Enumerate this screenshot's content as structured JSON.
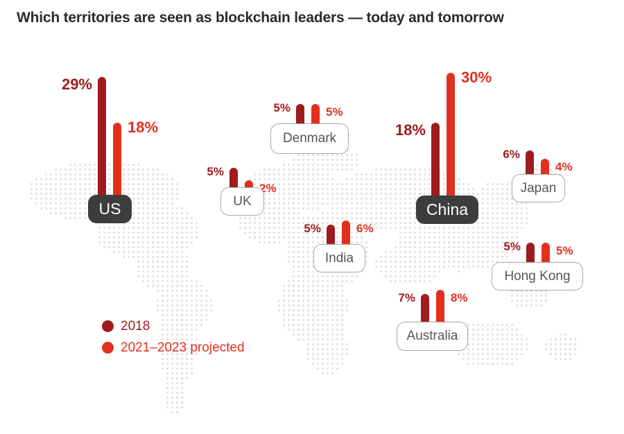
{
  "title": "Which territories are seen as blockchain leaders — today and tomorrow",
  "colors": {
    "y2018": "#9e1b20",
    "projected": "#e2301f",
    "dark_label": "#3d3d3d",
    "map_dots": "#e2e2e2"
  },
  "legend": [
    {
      "label": "2018",
      "color": "#9e1b20"
    },
    {
      "label": "2021–2023 projected",
      "color": "#e2301f"
    }
  ],
  "chart_data": {
    "type": "bar",
    "title": "Which territories are seen as blockchain leaders — today and tomorrow",
    "categories": [
      "US",
      "UK",
      "Denmark",
      "India",
      "China",
      "Japan",
      "Hong Kong",
      "Australia"
    ],
    "series": [
      {
        "name": "2018",
        "values": [
          29,
          5,
          5,
          5,
          18,
          6,
          5,
          7
        ]
      },
      {
        "name": "2021–2023 projected",
        "values": [
          18,
          2,
          5,
          6,
          30,
          4,
          5,
          8
        ]
      }
    ],
    "value_labels": {
      "2018": [
        "29%",
        "5%",
        "5%",
        "5%",
        "18%",
        "6%",
        "5%",
        "7%"
      ],
      "2021–2023 projected": [
        "18%",
        "2%",
        "5%",
        "6%",
        "30%",
        "4%",
        "5%",
        "8%"
      ]
    },
    "highlighted": [
      "US",
      "China"
    ],
    "background": "dotted world map",
    "legend_position": "bottom-left",
    "xlabel": "",
    "ylabel": ""
  }
}
